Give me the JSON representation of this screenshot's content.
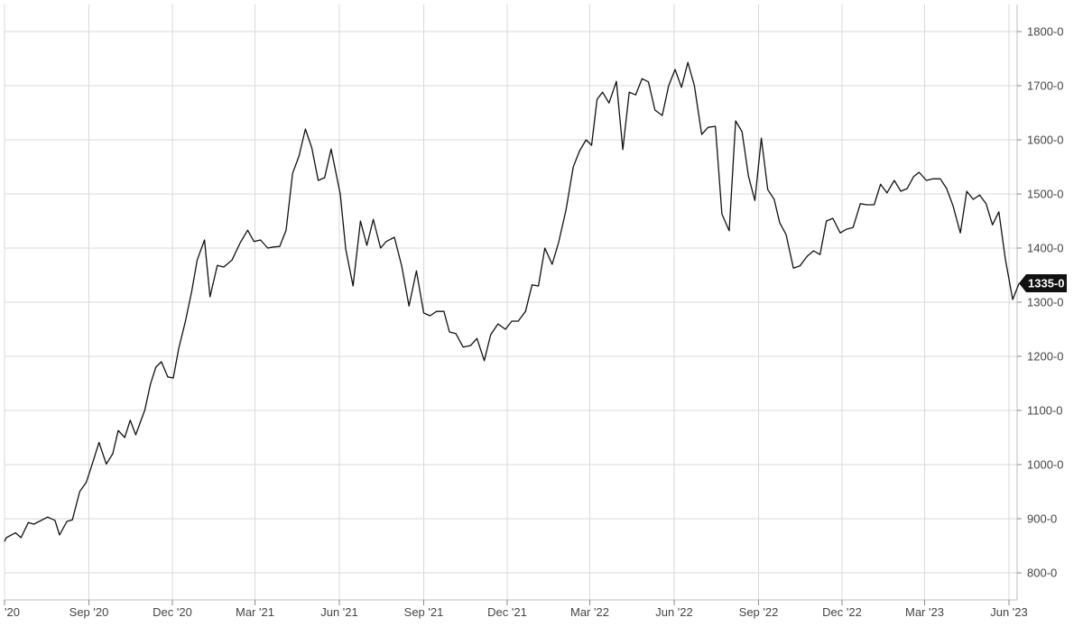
{
  "chart_data": {
    "type": "line",
    "title": "",
    "xlabel": "",
    "ylabel": "",
    "ylim": [
      750,
      1850
    ],
    "xlim": [
      "2020-06-01",
      "2023-06-01"
    ],
    "grid": true,
    "y_axis_position": "right",
    "y_ticks": [
      {
        "value": 800,
        "label": "800-0"
      },
      {
        "value": 900,
        "label": "900-0"
      },
      {
        "value": 1000,
        "label": "1000-0"
      },
      {
        "value": 1100,
        "label": "1100-0"
      },
      {
        "value": 1200,
        "label": "1200-0"
      },
      {
        "value": 1300,
        "label": "1300-0"
      },
      {
        "value": 1400,
        "label": "1400-0"
      },
      {
        "value": 1500,
        "label": "1500-0"
      },
      {
        "value": 1600,
        "label": "1600-0"
      },
      {
        "value": 1700,
        "label": "1700-0"
      },
      {
        "value": 1800,
        "label": "1800-0"
      }
    ],
    "x_ticks": [
      {
        "date": "2020-06-01",
        "label": "'20"
      },
      {
        "date": "2020-09-01",
        "label": "Sep '20"
      },
      {
        "date": "2020-12-01",
        "label": "Dec '20"
      },
      {
        "date": "2021-03-01",
        "label": "Mar '21"
      },
      {
        "date": "2021-06-01",
        "label": "Jun '21"
      },
      {
        "date": "2021-09-01",
        "label": "Sep '21"
      },
      {
        "date": "2021-12-01",
        "label": "Dec '21"
      },
      {
        "date": "2022-03-01",
        "label": "Mar '22"
      },
      {
        "date": "2022-06-01",
        "label": "Jun '22"
      },
      {
        "date": "2022-09-01",
        "label": "Sep '22"
      },
      {
        "date": "2022-12-01",
        "label": "Dec '22"
      },
      {
        "date": "2023-03-01",
        "label": "Mar '23"
      },
      {
        "date": "2023-06-01",
        "label": "Jun '23"
      }
    ],
    "last_value_label": "1335-0",
    "last_value": 1335,
    "series": [
      {
        "points": [
          [
            "2020-06-01",
            858
          ],
          [
            "2020-06-03",
            865
          ],
          [
            "2020-06-13",
            874
          ],
          [
            "2020-06-19",
            865
          ],
          [
            "2020-06-27",
            893
          ],
          [
            "2020-07-03",
            890
          ],
          [
            "2020-07-18",
            903
          ],
          [
            "2020-07-26",
            897
          ],
          [
            "2020-07-31",
            870
          ],
          [
            "2020-08-08",
            895
          ],
          [
            "2020-08-14",
            898
          ],
          [
            "2020-08-22",
            950
          ],
          [
            "2020-08-29",
            967
          ],
          [
            "2020-09-05",
            1003
          ],
          [
            "2020-09-12",
            1041
          ],
          [
            "2020-09-20",
            1001
          ],
          [
            "2020-09-27",
            1020
          ],
          [
            "2020-10-03",
            1063
          ],
          [
            "2020-10-10",
            1050
          ],
          [
            "2020-10-16",
            1082
          ],
          [
            "2020-10-22",
            1055
          ],
          [
            "2020-11-01",
            1101
          ],
          [
            "2020-11-07",
            1148
          ],
          [
            "2020-11-13",
            1180
          ],
          [
            "2020-11-19",
            1190
          ],
          [
            "2020-11-26",
            1162
          ],
          [
            "2020-12-02",
            1160
          ],
          [
            "2020-12-08",
            1215
          ],
          [
            "2020-12-15",
            1263
          ],
          [
            "2020-12-22",
            1320
          ],
          [
            "2020-12-28",
            1378
          ],
          [
            "2021-01-05",
            1415
          ],
          [
            "2021-01-11",
            1310
          ],
          [
            "2021-01-19",
            1368
          ],
          [
            "2021-01-26",
            1365
          ],
          [
            "2021-02-04",
            1378
          ],
          [
            "2021-02-13",
            1410
          ],
          [
            "2021-02-21",
            1433
          ],
          [
            "2021-02-28",
            1412
          ],
          [
            "2021-03-07",
            1415
          ],
          [
            "2021-03-15",
            1400
          ],
          [
            "2021-03-21",
            1402
          ],
          [
            "2021-03-28",
            1403
          ],
          [
            "2021-04-04",
            1433
          ],
          [
            "2021-04-11",
            1538
          ],
          [
            "2021-04-18",
            1570
          ],
          [
            "2021-04-25",
            1620
          ],
          [
            "2021-05-02",
            1585
          ],
          [
            "2021-05-09",
            1525
          ],
          [
            "2021-05-16",
            1530
          ],
          [
            "2021-05-23",
            1583
          ],
          [
            "2021-06-02",
            1500
          ],
          [
            "2021-06-08",
            1398
          ],
          [
            "2021-06-16",
            1330
          ],
          [
            "2021-06-24",
            1450
          ],
          [
            "2021-07-01",
            1405
          ],
          [
            "2021-07-08",
            1453
          ],
          [
            "2021-07-16",
            1400
          ],
          [
            "2021-07-22",
            1412
          ],
          [
            "2021-07-31",
            1420
          ],
          [
            "2021-08-08",
            1367
          ],
          [
            "2021-08-16",
            1293
          ],
          [
            "2021-08-24",
            1358
          ],
          [
            "2021-09-01",
            1280
          ],
          [
            "2021-09-08",
            1275
          ],
          [
            "2021-09-15",
            1283
          ],
          [
            "2021-09-23",
            1283
          ],
          [
            "2021-09-29",
            1245
          ],
          [
            "2021-10-06",
            1242
          ],
          [
            "2021-10-14",
            1217
          ],
          [
            "2021-10-22",
            1220
          ],
          [
            "2021-10-29",
            1233
          ],
          [
            "2021-11-06",
            1192
          ],
          [
            "2021-11-13",
            1240
          ],
          [
            "2021-11-21",
            1260
          ],
          [
            "2021-11-29",
            1250
          ],
          [
            "2021-12-06",
            1265
          ],
          [
            "2021-12-13",
            1265
          ],
          [
            "2021-12-21",
            1283
          ],
          [
            "2021-12-28",
            1332
          ],
          [
            "2022-01-04",
            1330
          ],
          [
            "2022-01-11",
            1400
          ],
          [
            "2022-01-19",
            1370
          ],
          [
            "2022-01-26",
            1410
          ],
          [
            "2022-02-03",
            1470
          ],
          [
            "2022-02-11",
            1550
          ],
          [
            "2022-02-18",
            1580
          ],
          [
            "2022-02-25",
            1600
          ],
          [
            "2022-03-03",
            1590
          ],
          [
            "2022-03-09",
            1675
          ],
          [
            "2022-03-15",
            1688
          ],
          [
            "2022-03-22",
            1668
          ],
          [
            "2022-03-30",
            1708
          ],
          [
            "2022-04-06",
            1582
          ],
          [
            "2022-04-13",
            1688
          ],
          [
            "2022-04-20",
            1683
          ],
          [
            "2022-04-27",
            1713
          ],
          [
            "2022-05-04",
            1707
          ],
          [
            "2022-05-11",
            1655
          ],
          [
            "2022-05-19",
            1645
          ],
          [
            "2022-05-26",
            1700
          ],
          [
            "2022-06-02",
            1730
          ],
          [
            "2022-06-09",
            1697
          ],
          [
            "2022-06-16",
            1743
          ],
          [
            "2022-06-23",
            1700
          ],
          [
            "2022-07-01",
            1610
          ],
          [
            "2022-07-08",
            1623
          ],
          [
            "2022-07-16",
            1625
          ],
          [
            "2022-07-23",
            1463
          ],
          [
            "2022-07-31",
            1432
          ],
          [
            "2022-08-07",
            1635
          ],
          [
            "2022-08-14",
            1615
          ],
          [
            "2022-08-21",
            1533
          ],
          [
            "2022-08-28",
            1488
          ],
          [
            "2022-09-04",
            1603
          ],
          [
            "2022-09-11",
            1508
          ],
          [
            "2022-09-18",
            1490
          ],
          [
            "2022-09-24",
            1447
          ],
          [
            "2022-10-01",
            1425
          ],
          [
            "2022-10-09",
            1363
          ],
          [
            "2022-10-16",
            1367
          ],
          [
            "2022-10-24",
            1385
          ],
          [
            "2022-10-31",
            1395
          ],
          [
            "2022-11-07",
            1388
          ],
          [
            "2022-11-14",
            1450
          ],
          [
            "2022-11-21",
            1455
          ],
          [
            "2022-11-29",
            1428
          ],
          [
            "2022-12-06",
            1435
          ],
          [
            "2022-12-13",
            1438
          ],
          [
            "2022-12-21",
            1482
          ],
          [
            "2022-12-28",
            1480
          ],
          [
            "2023-01-05",
            1480
          ],
          [
            "2023-01-12",
            1518
          ],
          [
            "2023-01-19",
            1502
          ],
          [
            "2023-01-27",
            1525
          ],
          [
            "2023-02-03",
            1505
          ],
          [
            "2023-02-10",
            1510
          ],
          [
            "2023-02-17",
            1532
          ],
          [
            "2023-02-23",
            1540
          ],
          [
            "2023-03-03",
            1525
          ],
          [
            "2023-03-10",
            1528
          ],
          [
            "2023-03-18",
            1528
          ],
          [
            "2023-03-25",
            1510
          ],
          [
            "2023-04-01",
            1478
          ],
          [
            "2023-04-09",
            1428
          ],
          [
            "2023-04-16",
            1505
          ],
          [
            "2023-04-23",
            1490
          ],
          [
            "2023-04-30",
            1498
          ],
          [
            "2023-05-07",
            1482
          ],
          [
            "2023-05-14",
            1443
          ],
          [
            "2023-05-21",
            1467
          ],
          [
            "2023-05-28",
            1380
          ],
          [
            "2023-06-05",
            1305
          ],
          [
            "2023-06-12",
            1335
          ]
        ]
      }
    ]
  }
}
